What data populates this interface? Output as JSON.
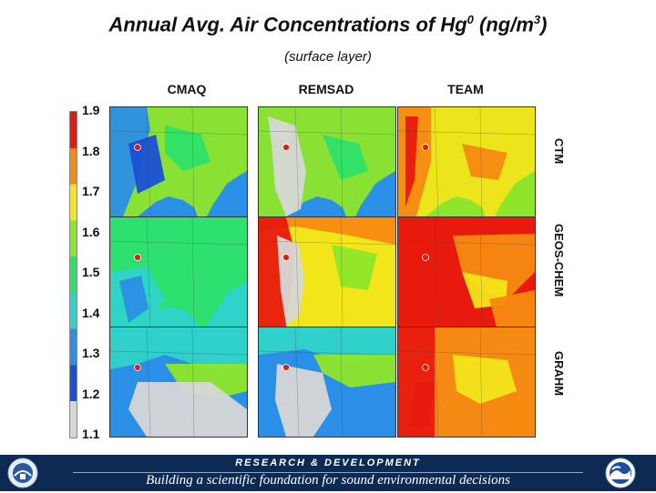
{
  "header": {
    "title": "Annual Avg. Air Concentrations of Hg0 (ng/m3)",
    "title_main": "Annual Avg. Air Concentrations of Hg",
    "title_sup1": "0",
    "title_mid": " (ng/m",
    "title_sup2": "3",
    "title_end": ")",
    "subtitle": "(surface layer)"
  },
  "columns": [
    "CMAQ",
    "REMSAD",
    "TEAM"
  ],
  "rows": [
    "CTM",
    "GEOS-CHEM",
    "GRAHM"
  ],
  "colorbar": {
    "ticks": [
      "1.9",
      "1.8",
      "1.7",
      "1.6",
      "1.5",
      "1.4",
      "1.3",
      "1.2",
      "1.1"
    ],
    "colors": [
      "#d7d7d7",
      "#1a4fd6",
      "#2a8fe6",
      "#2fd3c8",
      "#2ee06a",
      "#8ee62a",
      "#f2e51a",
      "#f58a12",
      "#e81a0e"
    ]
  },
  "footer": {
    "research": "RESEARCH & DEVELOPMENT",
    "tagline": "Building a scientific foundation for sound environmental decisions"
  },
  "icons": {
    "left_logo": "epa-seal-icon",
    "right_logo": "noaa-logo-icon"
  }
}
